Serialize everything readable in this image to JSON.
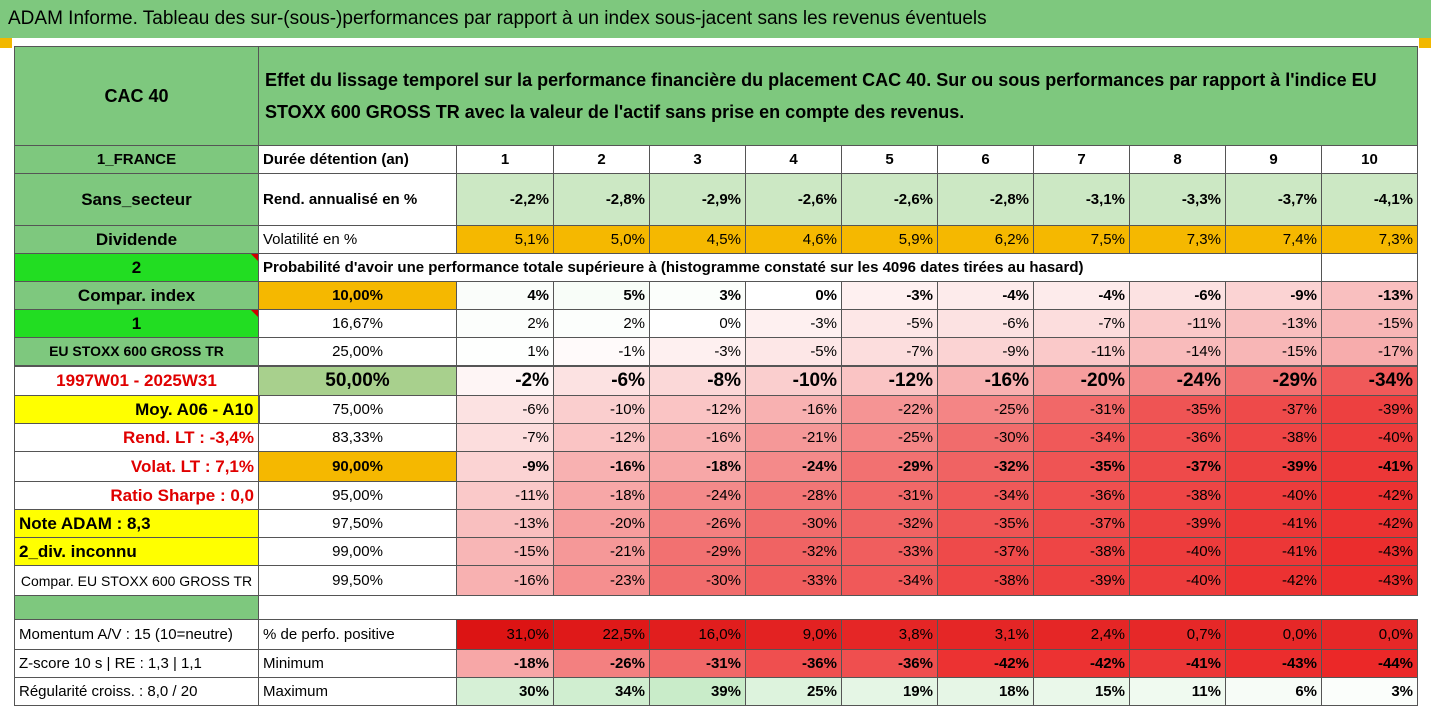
{
  "title": "ADAM Informe. Tableau des sur-(sous-)performances par rapport à un index sous-jacent sans les revenus éventuels",
  "header": {
    "asset": "CAC 40",
    "description": "Effet du lissage temporel sur la performance financière du placement CAC 40. Sur ou sous performances par rapport à l'indice EU STOXX 600 GROSS TR avec la valeur de l'actif sans prise en compte des revenus."
  },
  "left_labels": {
    "country": "1_FRANCE",
    "sector": "Sans_secteur",
    "dividend": "Dividende",
    "two": "2",
    "compar_index": "Compar. index",
    "one": "1",
    "index_name": "EU STOXX 600 GROSS TR",
    "period": "1997W01 - 2025W31",
    "moy": "Moy. A06 - A10",
    "rend_lt": "Rend. LT :   -3,4%",
    "volat_lt": "Volat. LT :   7,1%",
    "sharpe": "Ratio Sharpe :   0,0",
    "note": "Note ADAM : 8,3",
    "div_unknown": "2_div. inconnu",
    "compar_name": "Compar. EU STOXX 600 GROSS TR",
    "momentum": "Momentum A/V : 15 (10=neutre)",
    "zscore": "Z-score 10 s  | RE : 1,3  | 1,1",
    "regularite": "Régularité croiss. : 8,0 / 20"
  },
  "duration_label": "Durée détention (an)",
  "durations": [
    "1",
    "2",
    "3",
    "4",
    "5",
    "6",
    "7",
    "8",
    "9",
    "10"
  ],
  "rend_label": "Rend. annualisé en %",
  "rend": [
    "-2,2%",
    "-2,8%",
    "-2,9%",
    "-2,6%",
    "-2,6%",
    "-2,8%",
    "-3,1%",
    "-3,3%",
    "-3,7%",
    "-4,1%"
  ],
  "vol_label": "Volatilité en %",
  "vol": [
    "5,1%",
    "5,0%",
    "4,5%",
    "4,6%",
    "5,9%",
    "6,2%",
    "7,5%",
    "7,3%",
    "7,4%",
    "7,3%"
  ],
  "prob_title": "Probabilité d'avoir une performance totale supérieure à (histogramme constaté sur les 4096 dates tirées au hasard)",
  "quantiles": [
    {
      "p": "10,00%",
      "vals": [
        "4%",
        "5%",
        "3%",
        "0%",
        "-3%",
        "-4%",
        "-4%",
        "-6%",
        "-9%",
        "-13%"
      ]
    },
    {
      "p": "16,67%",
      "vals": [
        "2%",
        "2%",
        "0%",
        "-3%",
        "-5%",
        "-6%",
        "-7%",
        "-11%",
        "-13%",
        "-15%"
      ]
    },
    {
      "p": "25,00%",
      "vals": [
        "1%",
        "-1%",
        "-3%",
        "-5%",
        "-7%",
        "-9%",
        "-11%",
        "-14%",
        "-15%",
        "-17%"
      ]
    },
    {
      "p": "50,00%",
      "vals": [
        "-2%",
        "-6%",
        "-8%",
        "-10%",
        "-12%",
        "-16%",
        "-20%",
        "-24%",
        "-29%",
        "-34%"
      ]
    },
    {
      "p": "75,00%",
      "vals": [
        "-6%",
        "-10%",
        "-12%",
        "-16%",
        "-22%",
        "-25%",
        "-31%",
        "-35%",
        "-37%",
        "-39%"
      ]
    },
    {
      "p": "83,33%",
      "vals": [
        "-7%",
        "-12%",
        "-16%",
        "-21%",
        "-25%",
        "-30%",
        "-34%",
        "-36%",
        "-38%",
        "-40%"
      ]
    },
    {
      "p": "90,00%",
      "vals": [
        "-9%",
        "-16%",
        "-18%",
        "-24%",
        "-29%",
        "-32%",
        "-35%",
        "-37%",
        "-39%",
        "-41%"
      ]
    },
    {
      "p": "95,00%",
      "vals": [
        "-11%",
        "-18%",
        "-24%",
        "-28%",
        "-31%",
        "-34%",
        "-36%",
        "-38%",
        "-40%",
        "-42%"
      ]
    },
    {
      "p": "97,50%",
      "vals": [
        "-13%",
        "-20%",
        "-26%",
        "-30%",
        "-32%",
        "-35%",
        "-37%",
        "-39%",
        "-41%",
        "-42%"
      ]
    },
    {
      "p": "99,00%",
      "vals": [
        "-15%",
        "-21%",
        "-29%",
        "-32%",
        "-33%",
        "-37%",
        "-38%",
        "-40%",
        "-41%",
        "-43%"
      ]
    },
    {
      "p": "99,50%",
      "vals": [
        "-16%",
        "-23%",
        "-30%",
        "-33%",
        "-34%",
        "-38%",
        "-39%",
        "-40%",
        "-42%",
        "-43%"
      ]
    }
  ],
  "pos_label": "% de perfo. positive",
  "pos": [
    "31,0%",
    "22,5%",
    "16,0%",
    "9,0%",
    "3,8%",
    "3,1%",
    "2,4%",
    "0,7%",
    "0,0%",
    "0,0%"
  ],
  "min_label": "Minimum",
  "min": [
    "-18%",
    "-26%",
    "-31%",
    "-36%",
    "-36%",
    "-42%",
    "-42%",
    "-41%",
    "-43%",
    "-44%"
  ],
  "max_label": "Maximum",
  "max": [
    "30%",
    "34%",
    "39%",
    "25%",
    "19%",
    "18%",
    "15%",
    "11%",
    "6%",
    "3%"
  ],
  "colors": {
    "header_green": "#7ec87e",
    "orange": "#f5b800",
    "yellow": "#ffff00",
    "lime": "#22dd22",
    "red_text": "#e00000"
  }
}
